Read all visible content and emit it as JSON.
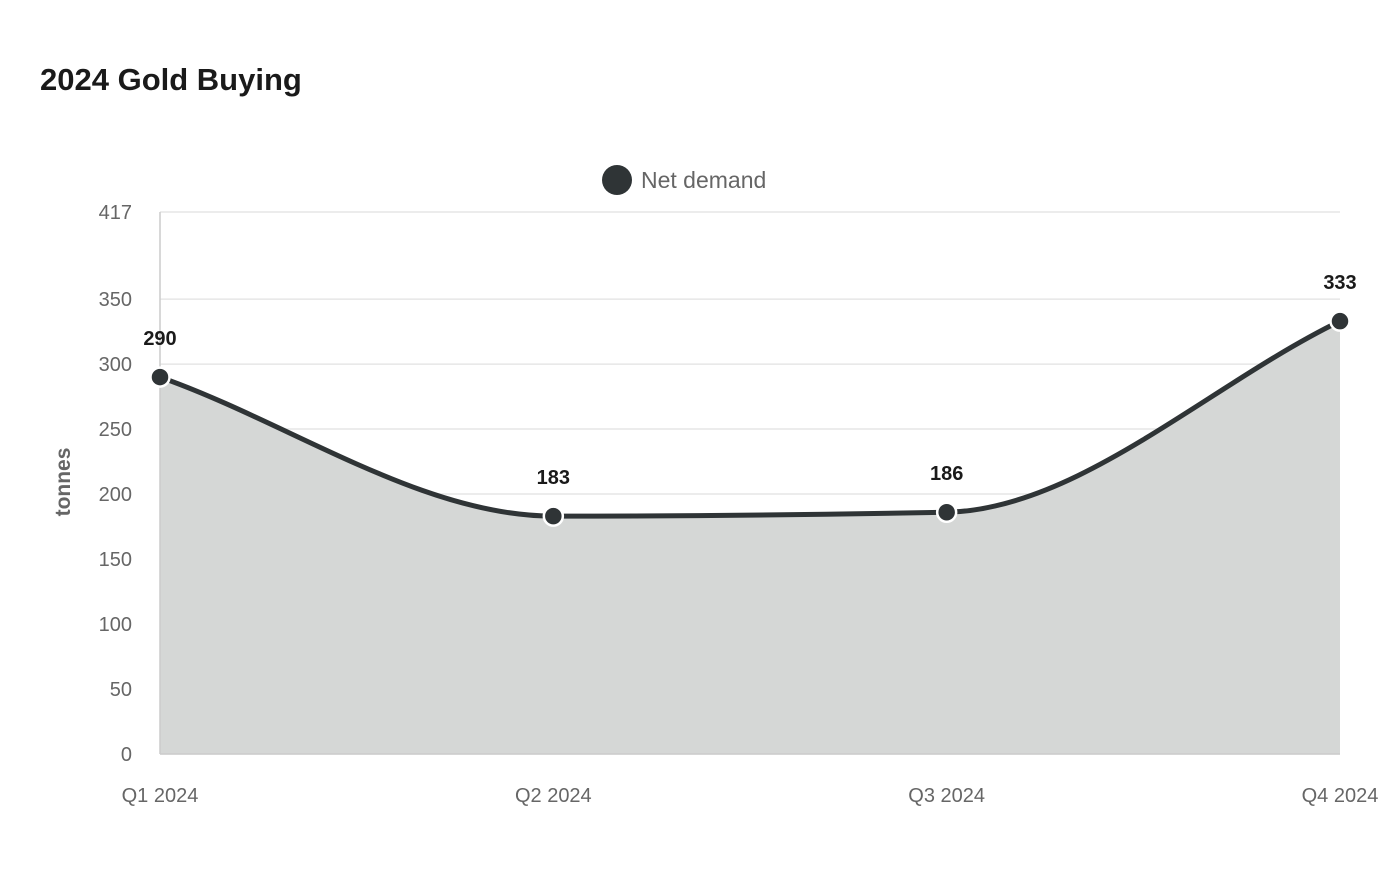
{
  "chart_data": {
    "type": "area",
    "title": "2024 Gold Buying",
    "xlabel": "",
    "ylabel": "tonnes",
    "categories": [
      "Q1 2024",
      "Q2 2024",
      "Q3 2024",
      "Q4 2024"
    ],
    "series": [
      {
        "name": "Net demand",
        "values": [
          290,
          183,
          186,
          333
        ],
        "color": "#2f3436",
        "fill_color": "#d5d7d6"
      }
    ],
    "ylim": [
      0,
      417
    ],
    "yticks": [
      0,
      50,
      100,
      150,
      200,
      250,
      300,
      350,
      417
    ],
    "grid": true,
    "legend_position": "top-center",
    "data_labels": true
  }
}
